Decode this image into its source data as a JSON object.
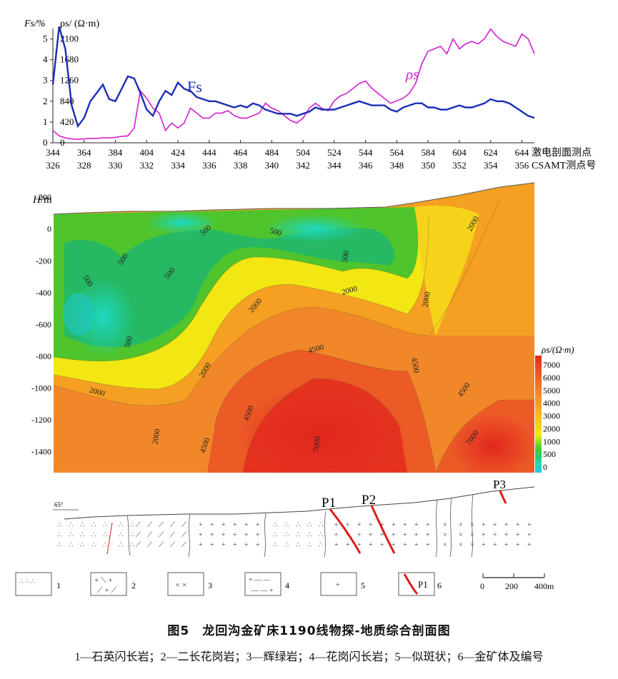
{
  "figure": {
    "title": "图5　龙回沟金矿床1190线物探-地质综合剖面图",
    "legend_line": "1—石英闪长岩；2—二长花岗岩；3—辉绿岩；4—花岗闪长岩；5—似斑状；6—金矿体及编号"
  },
  "top_panel": {
    "left_axis_label": "Fs/%",
    "right_axis_label": "ρs/ (Ω·m)",
    "fs_ticks": [
      "5",
      "4",
      "3",
      "2",
      "1",
      "0"
    ],
    "rho_ticks": [
      "2100",
      "1680",
      "1260",
      "840",
      "420",
      "0"
    ],
    "ip_stations": [
      "344",
      "364",
      "384",
      "404",
      "424",
      "444",
      "464",
      "484",
      "504",
      "524",
      "544",
      "564",
      "584",
      "604",
      "624",
      "644"
    ],
    "csamt_stations": [
      "326",
      "328",
      "330",
      "332",
      "334",
      "336",
      "338",
      "340",
      "342",
      "344",
      "346",
      "348",
      "350",
      "352",
      "354",
      "356"
    ],
    "ip_row_label": "激电剖面测点",
    "csamt_row_label": "CSAMT测点号",
    "fs_series_label": "Fs",
    "rho_series_label": "ρs"
  },
  "chart_data": [
    {
      "type": "line",
      "x_label": "激电剖面测点",
      "x": [
        344,
        348,
        352,
        356,
        360,
        364,
        368,
        372,
        376,
        380,
        384,
        388,
        392,
        396,
        400,
        404,
        408,
        412,
        416,
        420,
        424,
        428,
        432,
        436,
        440,
        444,
        448,
        452,
        456,
        460,
        464,
        468,
        472,
        476,
        480,
        484,
        488,
        492,
        496,
        500,
        504,
        508,
        512,
        516,
        520,
        524,
        528,
        532,
        536,
        540,
        544,
        548,
        552,
        556,
        560,
        564,
        568,
        572,
        576,
        580,
        584,
        588,
        592,
        596,
        600,
        604,
        608,
        612,
        616,
        620,
        624,
        628,
        632,
        636,
        640,
        644,
        648,
        652
      ],
      "series": [
        {
          "name": "Fs",
          "axis": "Fs/%",
          "ylim": [
            0,
            5.5
          ],
          "values": [
            2.8,
            5.6,
            4.5,
            1.8,
            0.8,
            1.2,
            2.0,
            2.4,
            2.8,
            2.1,
            2.0,
            2.6,
            3.2,
            3.1,
            2.4,
            1.6,
            1.3,
            2.0,
            2.5,
            2.3,
            2.9,
            2.6,
            2.5,
            2.2,
            2.1,
            2.0,
            2.0,
            1.9,
            1.8,
            1.7,
            1.8,
            1.7,
            1.9,
            1.8,
            1.6,
            1.5,
            1.4,
            1.4,
            1.4,
            1.3,
            1.4,
            1.5,
            1.7,
            1.6,
            1.6,
            1.6,
            1.7,
            1.8,
            1.9,
            2.0,
            1.9,
            1.8,
            1.8,
            1.8,
            1.6,
            1.5,
            1.7,
            1.8,
            1.9,
            1.9,
            1.7,
            1.7,
            1.6,
            1.6,
            1.7,
            1.8,
            1.7,
            1.7,
            1.8,
            1.9,
            2.1,
            2.0,
            2.0,
            1.9,
            1.7,
            1.5,
            1.3,
            1.2
          ]
        },
        {
          "name": "ρs",
          "axis": "ρs/(Ω·m)",
          "ylim": [
            0,
            2310
          ],
          "values": [
            250,
            140,
            100,
            80,
            70,
            80,
            90,
            90,
            100,
            100,
            110,
            130,
            140,
            300,
            1050,
            900,
            700,
            600,
            250,
            400,
            300,
            400,
            700,
            600,
            500,
            500,
            600,
            600,
            650,
            550,
            500,
            500,
            550,
            600,
            800,
            700,
            650,
            550,
            450,
            400,
            500,
            700,
            800,
            700,
            650,
            850,
            950,
            1000,
            1100,
            1200,
            1250,
            1100,
            1000,
            900,
            800,
            850,
            900,
            1000,
            1200,
            1600,
            1850,
            1900,
            1950,
            1800,
            2100,
            1900,
            2000,
            2050,
            2000,
            2100,
            2300,
            2150,
            2050,
            2000,
            1950,
            2200,
            2100,
            1800
          ]
        }
      ]
    },
    {
      "type": "heatmap",
      "title": "",
      "ylabel": "H/m",
      "y_ticks": [
        "200",
        "0",
        "-200",
        "-400",
        "-600",
        "-800",
        "-1000",
        "-1200",
        "-1400"
      ],
      "ylim": [
        -1500,
        250
      ],
      "colorbar_label": "ρs/(Ω·m)",
      "colorbar_ticks": [
        "7000",
        "6000",
        "5000",
        "4000",
        "3000",
        "2000",
        "1000",
        "500",
        "0"
      ],
      "contour_labels": [
        "500",
        "500",
        "500",
        "500",
        "500",
        "500",
        "500",
        "2000",
        "2000",
        "2000",
        "2000",
        "2000",
        "2000",
        "2000",
        "4500",
        "4500",
        "4500",
        "4500",
        "4500",
        "7000",
        "7000"
      ]
    }
  ],
  "geology": {
    "fault_labels": [
      "P1",
      "P2",
      "P3"
    ],
    "dip_label": "65°",
    "legend_items": [
      "1",
      "2",
      "3",
      "4",
      "5",
      "P1",
      "6"
    ],
    "scale_labels": [
      "0",
      "200",
      "400m"
    ]
  }
}
